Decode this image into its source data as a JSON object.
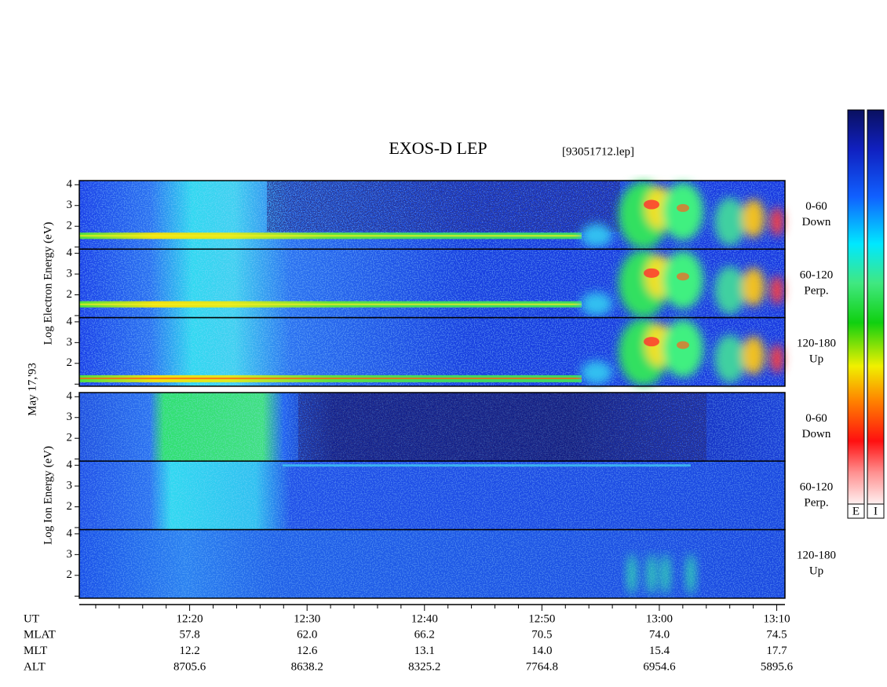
{
  "chart_data": {
    "type": "spectrogram",
    "title": "EXOS-D LEP",
    "subtitle": "[93051712.lep]",
    "date_label": "May 17,'93",
    "groups": [
      {
        "ylabel": "Log  Electron  Energy (eV)",
        "panels": [
          {
            "label": "0-60",
            "sublabel": "Down"
          },
          {
            "label": "60-120",
            "sublabel": "Perp."
          },
          {
            "label": "120-180",
            "sublabel": "Up"
          }
        ]
      },
      {
        "ylabel": "Log  Ion  Energy (eV)",
        "panels": [
          {
            "label": "0-60",
            "sublabel": "Down"
          },
          {
            "label": "60-120",
            "sublabel": "Perp."
          },
          {
            "label": "120-180",
            "sublabel": "Up"
          }
        ]
      }
    ],
    "ylim": [
      0.9,
      4.2
    ],
    "yticks": [
      2,
      3,
      4
    ],
    "minor_yticks": [
      1
    ],
    "x_label": "UT",
    "xlim": [
      730.6,
      790.7
    ],
    "xticks": [
      {
        "value": 740,
        "label": "12:20"
      },
      {
        "value": 750,
        "label": "12:30"
      },
      {
        "value": 760,
        "label": "12:40"
      },
      {
        "value": 770,
        "label": "12:50"
      },
      {
        "value": 780,
        "label": "13:00"
      },
      {
        "value": 790,
        "label": "13:10"
      }
    ],
    "minor_xticks": [
      732,
      734,
      736,
      738,
      742,
      744,
      746,
      748,
      752,
      754,
      756,
      758,
      762,
      764,
      766,
      768,
      772,
      774,
      776,
      778,
      782,
      784,
      786,
      788
    ],
    "ephemeris": [
      {
        "name": "MLAT",
        "values": [
          "57.8",
          "62.0",
          "66.2",
          "70.5",
          "74.0",
          "74.5"
        ]
      },
      {
        "name": "MLT",
        "values": [
          "12.2",
          "12.6",
          "13.1",
          "14.0",
          "15.4",
          "17.7"
        ]
      },
      {
        "name": "ALT",
        "values": [
          "8705.6",
          "8638.2",
          "8325.2",
          "7764.8",
          "6954.6",
          "5895.6"
        ]
      }
    ],
    "colorbars": [
      "E",
      "I"
    ]
  }
}
